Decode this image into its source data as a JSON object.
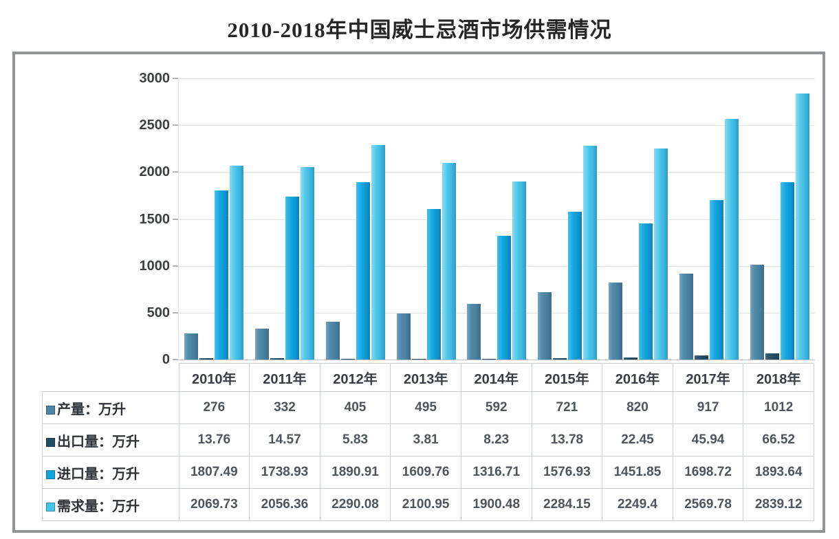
{
  "chart_data": {
    "type": "bar",
    "title": "2010-2018年中国威士忌酒市场供需情况",
    "categories": [
      "2010年",
      "2011年",
      "2012年",
      "2013年",
      "2014年",
      "2015年",
      "2016年",
      "2017年",
      "2018年"
    ],
    "series": [
      {
        "name": "产量：万升",
        "color": "#4d85a5",
        "values": [
          276,
          332,
          405,
          495,
          592,
          721,
          820,
          917,
          1012
        ]
      },
      {
        "name": "出口量：万升",
        "color": "#234d61",
        "values": [
          13.76,
          14.57,
          5.83,
          3.81,
          8.23,
          13.78,
          22.45,
          45.94,
          66.52
        ]
      },
      {
        "name": "进口量：万升",
        "color": "#12a4e0",
        "values": [
          1807.49,
          1738.93,
          1890.91,
          1609.76,
          1316.71,
          1576.93,
          1451.85,
          1698.72,
          1893.64
        ]
      },
      {
        "name": "需求量：万升",
        "color": "#46c4e9",
        "values": [
          2069.73,
          2056.36,
          2290.08,
          2100.95,
          1900.48,
          2284.15,
          2249.4,
          2569.78,
          2839.12
        ]
      }
    ],
    "ylim": [
      0,
      3000
    ],
    "y_ticks": [
      0,
      500,
      1000,
      1500,
      2000,
      2500,
      3000
    ],
    "grid": true,
    "legend_position": "table-left"
  }
}
